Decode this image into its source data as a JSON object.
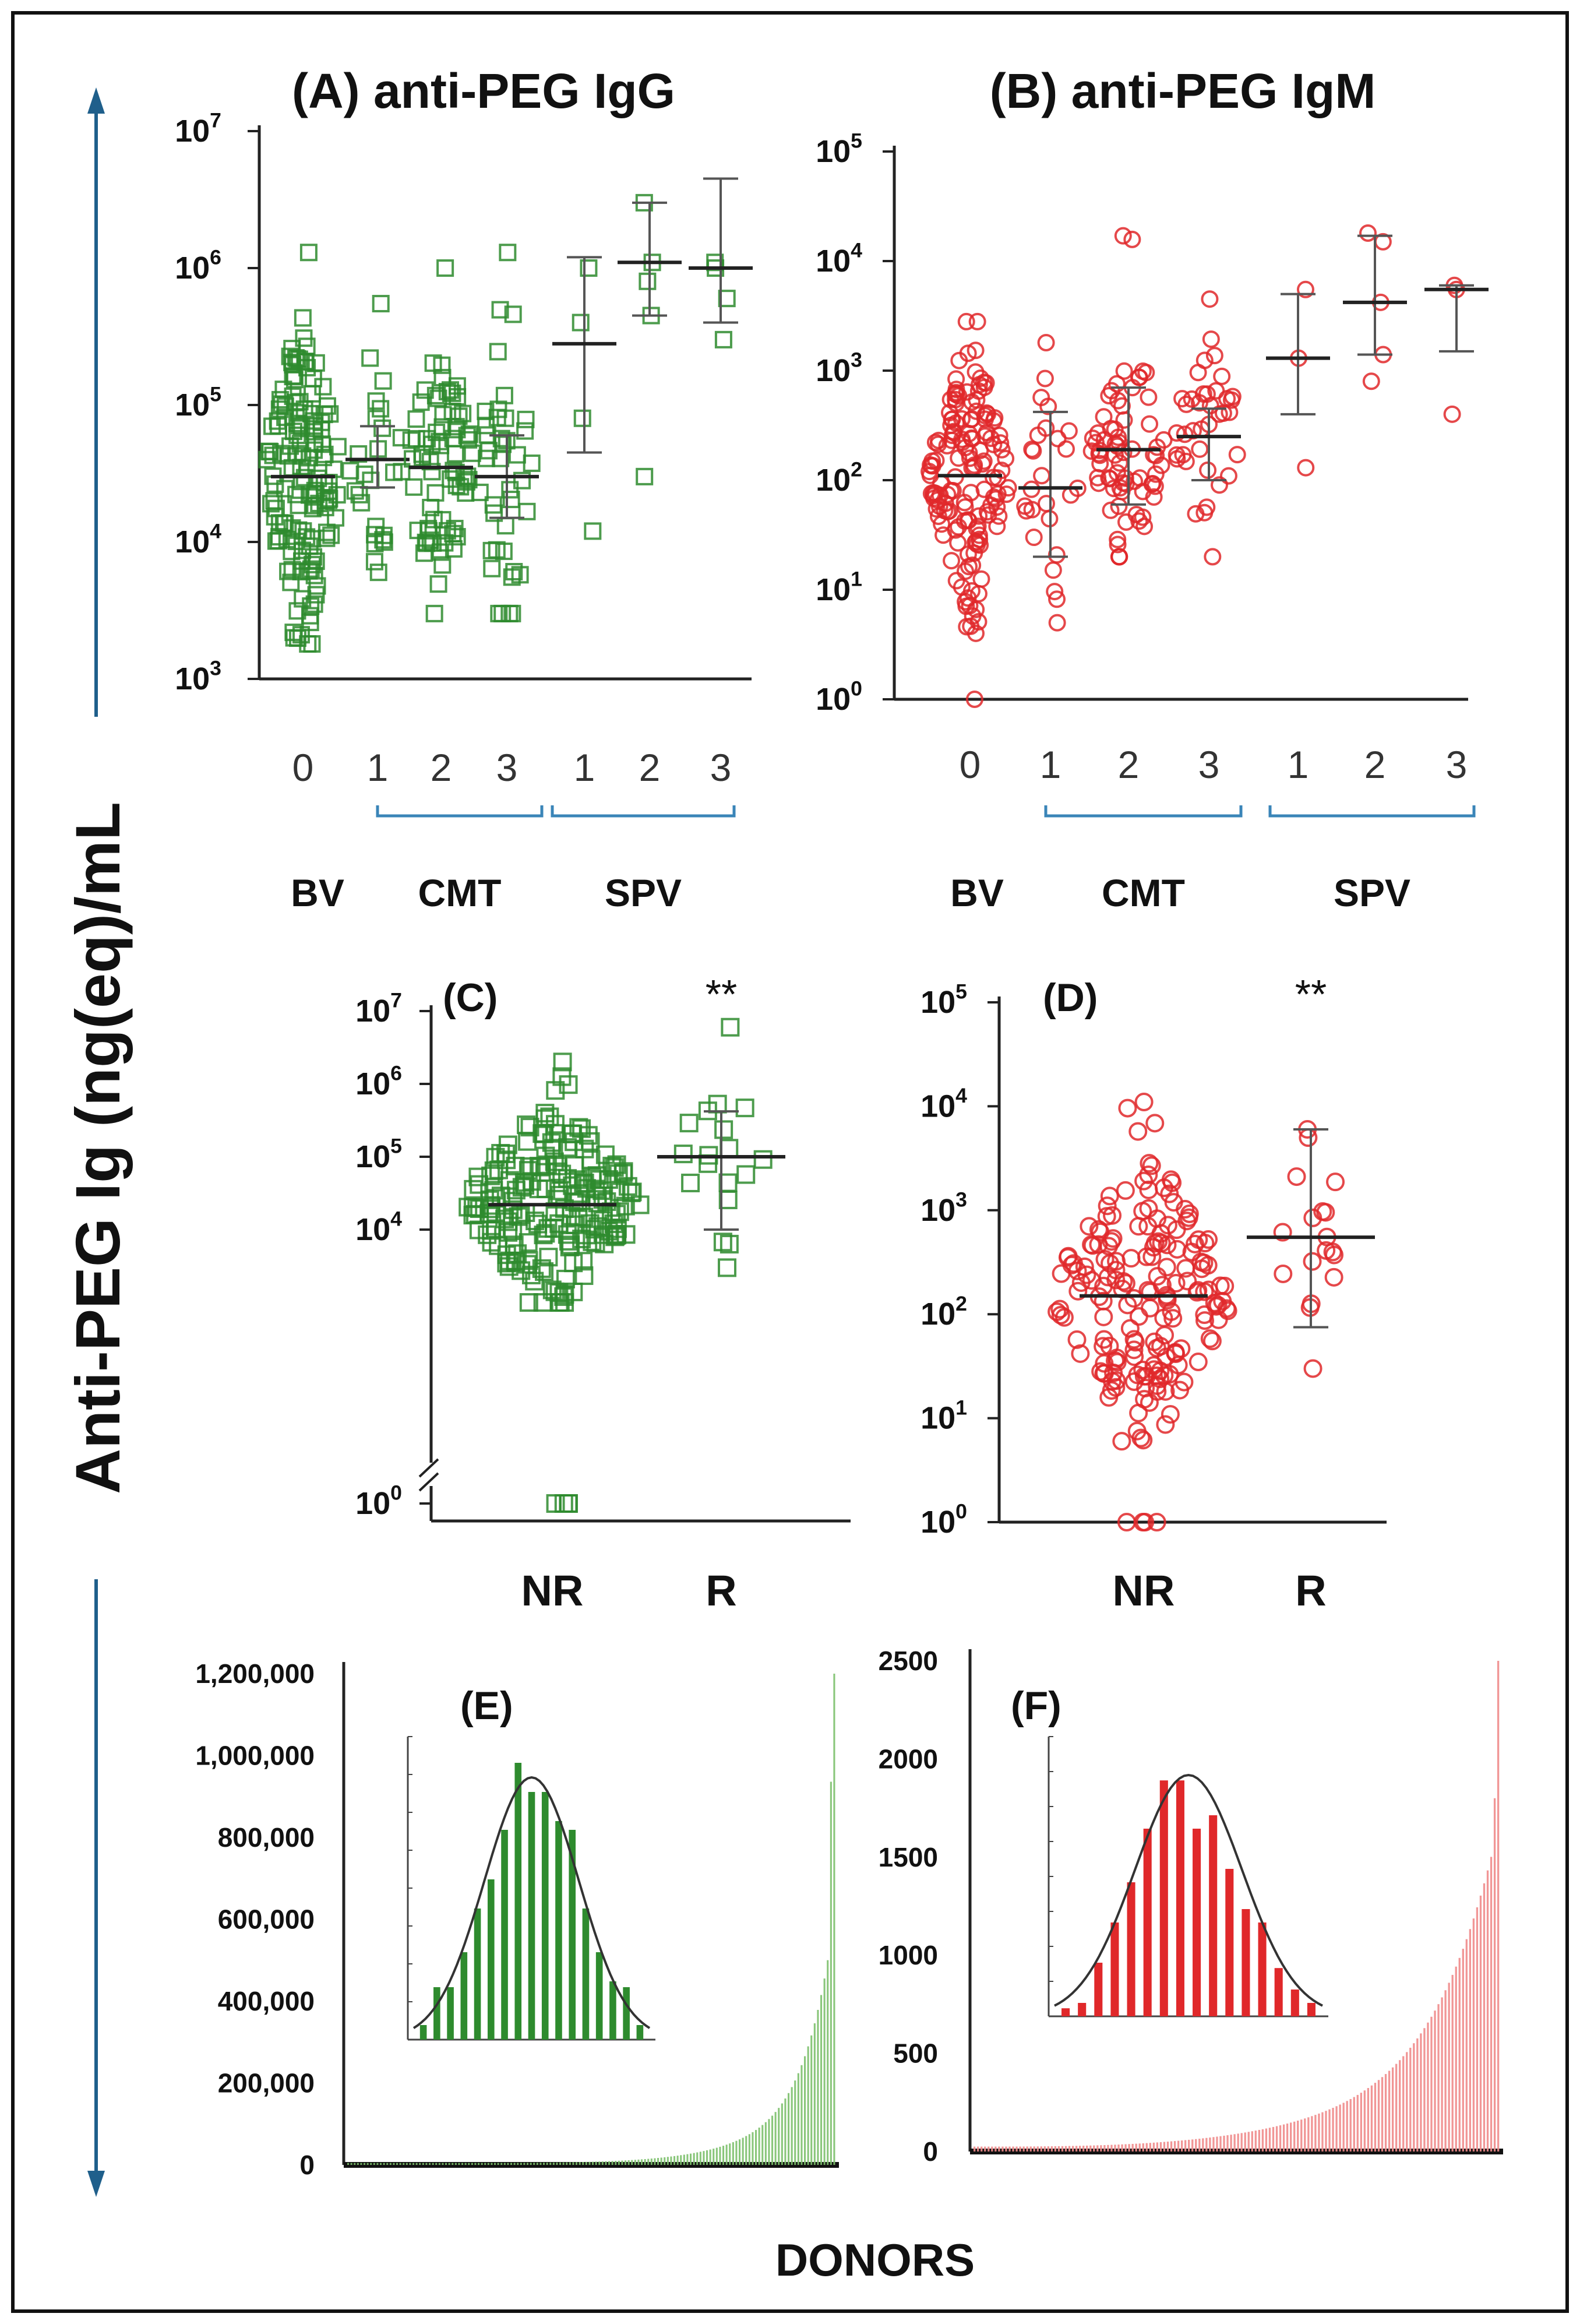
{
  "figure": {
    "y_axis_label": "Anti-PEG Ig (ng(eq)/mL",
    "x_axis_label": "DONORS",
    "colors": {
      "igg": "#2e8b2e",
      "igm": "#e0282a",
      "arrow": "#1f5f8b",
      "bracket": "#3a85b8",
      "errorbar": "#555555"
    }
  },
  "chart_data": [
    {
      "id": "A",
      "type": "scatter",
      "title": "(A) anti-PEG IgG",
      "yscale": "log",
      "ylim": [
        1000,
        10000000
      ],
      "ytick_labels": [
        {
          "base": "10",
          "exp": "3"
        },
        {
          "base": "10",
          "exp": "4"
        },
        {
          "base": "10",
          "exp": "5"
        },
        {
          "base": "10",
          "exp": "6"
        },
        {
          "base": "10",
          "exp": "7"
        }
      ],
      "categories": [
        "0",
        "1",
        "2",
        "3",
        "1",
        "2",
        "3"
      ],
      "groups": [
        {
          "label": "BV",
          "categories": [
            0
          ]
        },
        {
          "label": "CMT",
          "categories": [
            1,
            2,
            3
          ]
        },
        {
          "label": "SPV",
          "categories": [
            4,
            5,
            6
          ]
        }
      ],
      "marker": "square",
      "series": [
        {
          "center": 30000,
          "low": null,
          "high": null,
          "range": [
            1800,
            1300000
          ],
          "n": 140,
          "spread": 0.55
        },
        {
          "center": 40000,
          "low": 25000,
          "high": 70000,
          "range": [
            6000,
            550000
          ],
          "n": 24,
          "spread": 0.3
        },
        {
          "center": 35000,
          "low": null,
          "high": null,
          "range": [
            3000,
            1000000
          ],
          "n": 70,
          "spread": 0.45
        },
        {
          "center": 30000,
          "low": 15000,
          "high": 60000,
          "range": [
            3000,
            1300000
          ],
          "n": 38,
          "spread": 0.4
        },
        {
          "center": 280000,
          "low": 45000,
          "high": 1200000,
          "range": [
            12000,
            1000000
          ],
          "n": 4,
          "spread": 0.15,
          "points": [
            12000,
            80000,
            400000,
            1000000
          ]
        },
        {
          "center": 1100000,
          "low": 450000,
          "high": 3000000,
          "range": [
            30000,
            3000000
          ],
          "n": 5,
          "spread": 0.15,
          "points": [
            30000,
            450000,
            800000,
            1100000,
            3000000
          ]
        },
        {
          "center": 1000000,
          "low": 400000,
          "high": 4500000,
          "range": [
            300000,
            1200000
          ],
          "n": 4,
          "spread": 0.15,
          "points": [
            300000,
            600000,
            1000000,
            1100000
          ]
        }
      ]
    },
    {
      "id": "B",
      "type": "scatter",
      "title": "(B) anti-PEG IgM",
      "yscale": "log",
      "ylim": [
        1,
        100000
      ],
      "ytick_labels": [
        {
          "base": "10",
          "exp": "0"
        },
        {
          "base": "10",
          "exp": "1"
        },
        {
          "base": "10",
          "exp": "2"
        },
        {
          "base": "10",
          "exp": "3"
        },
        {
          "base": "10",
          "exp": "4"
        },
        {
          "base": "10",
          "exp": "5"
        }
      ],
      "categories": [
        "0",
        "1",
        "2",
        "3",
        "1",
        "2",
        "3"
      ],
      "groups": [
        {
          "label": "BV",
          "categories": [
            0
          ]
        },
        {
          "label": "CMT",
          "categories": [
            1,
            2,
            3
          ]
        },
        {
          "label": "SPV",
          "categories": [
            4,
            5,
            6
          ]
        }
      ],
      "marker": "circle",
      "series": [
        {
          "center": 110,
          "low": null,
          "high": null,
          "range": [
            4,
            2800
          ],
          "n": 150,
          "spread": 0.55,
          "extra": [
            1
          ]
        },
        {
          "center": 85,
          "low": 20,
          "high": 420,
          "range": [
            5,
            1800
          ],
          "n": 24,
          "spread": 0.3
        },
        {
          "center": 190,
          "low": 60,
          "high": 700,
          "range": [
            20,
            17000
          ],
          "n": 70,
          "spread": 0.45
        },
        {
          "center": 250,
          "low": 100,
          "high": 450,
          "range": [
            20,
            4500
          ],
          "n": 36,
          "spread": 0.4
        },
        {
          "center": 1300,
          "low": 400,
          "high": 5000,
          "range": [
            130,
            5500
          ],
          "n": 3,
          "spread": 0.15,
          "points": [
            130,
            1300,
            5500
          ]
        },
        {
          "center": 4200,
          "low": 1400,
          "high": 17000,
          "range": [
            800,
            18000
          ],
          "n": 5,
          "spread": 0.15,
          "points": [
            800,
            1400,
            4200,
            15000,
            18000
          ]
        },
        {
          "center": 5500,
          "low": 1500,
          "high": 6000,
          "range": [
            400,
            6000
          ],
          "n": 3,
          "spread": 0.15,
          "points": [
            400,
            5500,
            6000
          ]
        }
      ]
    },
    {
      "id": "C",
      "type": "scatter",
      "title": "(C)",
      "significance": "**",
      "yscale": "log",
      "axis_break": true,
      "ylim": [
        1,
        10000000
      ],
      "ytick_labels": [
        {
          "base": "10",
          "exp": "0"
        },
        {
          "base": "10",
          "exp": "4"
        },
        {
          "base": "10",
          "exp": "5"
        },
        {
          "base": "10",
          "exp": "6"
        },
        {
          "base": "10",
          "exp": "7"
        }
      ],
      "categories": [
        "NR",
        "R"
      ],
      "marker": "square",
      "series": [
        {
          "center": 22000,
          "low": null,
          "high": null,
          "range": [
            1000,
            2000000
          ],
          "n": 190,
          "spread": 0.9,
          "extra": [
            1,
            1,
            1,
            1
          ]
        },
        {
          "center": 100000,
          "low": 10000,
          "high": 420000,
          "range": [
            3000,
            6000000
          ],
          "n": 16,
          "spread": 0.25
        }
      ]
    },
    {
      "id": "D",
      "type": "scatter",
      "title": "(D)",
      "significance": "**",
      "yscale": "log",
      "ylim": [
        1,
        100000
      ],
      "ytick_labels": [
        {
          "base": "10",
          "exp": "0"
        },
        {
          "base": "10",
          "exp": "1"
        },
        {
          "base": "10",
          "exp": "2"
        },
        {
          "base": "10",
          "exp": "3"
        },
        {
          "base": "10",
          "exp": "4"
        },
        {
          "base": "10",
          "exp": "5"
        }
      ],
      "categories": [
        "NR",
        "R"
      ],
      "marker": "circle",
      "series": [
        {
          "center": 150,
          "low": null,
          "high": null,
          "range": [
            6,
            11000
          ],
          "n": 180,
          "spread": 0.9,
          "extra": [
            1,
            1,
            1,
            1
          ]
        },
        {
          "center": 550,
          "low": 75,
          "high": 6000,
          "range": [
            30,
            6000
          ],
          "n": 16,
          "spread": 0.25
        }
      ]
    },
    {
      "id": "E",
      "type": "bar",
      "title": "(E)",
      "ylim": [
        0,
        1200000
      ],
      "n_bars": 150,
      "ytick_labels": [
        "0",
        "200,000",
        "400,000",
        "600,000",
        "800,000",
        "1,000,000",
        "1,200,000"
      ],
      "inset": {
        "type": "histogram",
        "values": [
          0.05,
          0.18,
          0.18,
          0.3,
          0.45,
          0.55,
          0.72,
          0.95,
          0.85,
          0.85,
          0.75,
          0.72,
          0.45,
          0.3,
          0.2,
          0.18,
          0.05
        ]
      }
    },
    {
      "id": "F",
      "type": "bar",
      "title": "(F)",
      "ylim": [
        0,
        2500
      ],
      "n_bars": 150,
      "ytick_labels": [
        "0",
        "500",
        "1000",
        "1500",
        "2000",
        "2500"
      ],
      "inset": {
        "type": "histogram",
        "values": [
          0.03,
          0.05,
          0.2,
          0.35,
          0.5,
          0.7,
          0.88,
          0.88,
          0.7,
          0.75,
          0.55,
          0.4,
          0.35,
          0.18,
          0.1,
          0.05
        ]
      }
    }
  ]
}
